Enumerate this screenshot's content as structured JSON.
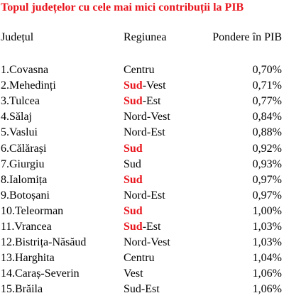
{
  "title": "Topul județelor cu cele mai mici contribuții la PIB",
  "headers": {
    "county": "Județul",
    "region": "Regiunea",
    "share": "Pondere în PIB"
  },
  "rows": [
    {
      "county": "1.Covasna",
      "region_red": "",
      "region_rest": "Centru",
      "share": "0,70%"
    },
    {
      "county": "2.Mehedinți",
      "region_red": "Sud",
      "region_rest": "-Vest",
      "share": "0,71%"
    },
    {
      "county": "3.Tulcea",
      "region_red": "Sud",
      "region_rest": "-Est",
      "share": "0,77%"
    },
    {
      "county": "4.Sălaj",
      "region_red": "",
      "region_rest": "Nord-Vest",
      "share": "0,84%"
    },
    {
      "county": "5.Vaslui",
      "region_red": "",
      "region_rest": "Nord-Est",
      "share": "0,88%"
    },
    {
      "county": "6.Călărași",
      "region_red": "Sud",
      "region_rest": "",
      "share": "0,92%"
    },
    {
      "county": "7.Giurgiu",
      "region_red": "",
      "region_rest": "Sud",
      "share": "0,93%"
    },
    {
      "county": "8.Ialomița",
      "region_red": "Sud",
      "region_rest": "",
      "share": "0,97%"
    },
    {
      "county": "9.Botoșani",
      "region_red": "",
      "region_rest": "Nord-Est",
      "share": "0,97%"
    },
    {
      "county": "10.Teleorman",
      "region_red": "Sud",
      "region_rest": "",
      "share": "1,00%"
    },
    {
      "county": "11.Vrancea",
      "region_red": "Sud",
      "region_rest": "-Est",
      "share": "1,03%"
    },
    {
      "county": "12.Bistrița-Năsăud",
      "region_red": "",
      "region_rest": "Nord-Vest",
      "share": "1,03%"
    },
    {
      "county": "13.Harghita",
      "region_red": "",
      "region_rest": "Centru",
      "share": "1,04%"
    },
    {
      "county": "14.Caraș-Severin",
      "region_red": "",
      "region_rest": "Vest",
      "share": "1,06%"
    },
    {
      "county": "15.Brăila",
      "region_red": "",
      "region_rest": "Sud-Est",
      "share": "1,06%"
    }
  ],
  "colors": {
    "highlight": "#e8141c",
    "text": "#000000",
    "background": "#ffffff"
  }
}
